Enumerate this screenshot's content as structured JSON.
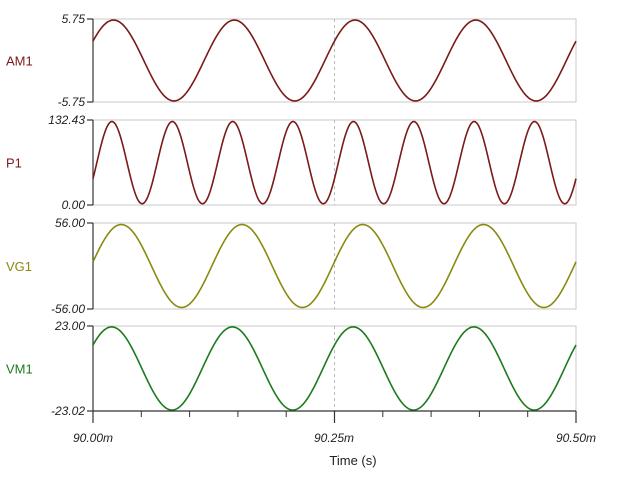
{
  "chart_data": {
    "type": "line",
    "x_ticks": [
      "90.00m",
      "90.25m",
      "90.50m"
    ],
    "x_range": [
      90.0,
      90.5
    ],
    "x_unit_note": "ms",
    "xlabel": "Time (s)",
    "panels": [
      {
        "name": "AM1",
        "color": "#7a1a1a",
        "y_top_label": "5.75",
        "y_bottom_label": "-5.75",
        "ylim": [
          -5.75,
          5.75
        ],
        "amplitude": 5.6,
        "offset": 0.0,
        "freq_cycles": 4.0,
        "phase": 0.5
      },
      {
        "name": "P1",
        "color": "#7a1a1a",
        "y_top_label": "132.43",
        "y_bottom_label": "0.00",
        "ylim": [
          0.0,
          132.43
        ],
        "amplitude": 64,
        "offset": 66,
        "freq_cycles": 8.0,
        "phase": -0.4
      },
      {
        "name": "VG1",
        "color": "#8a8a10",
        "y_top_label": "56.00",
        "y_bottom_label": "-56.00",
        "ylim": [
          -56.0,
          56.0
        ],
        "amplitude": 54,
        "offset": 0.0,
        "freq_cycles": 4.0,
        "phase": 0.1
      },
      {
        "name": "VM1",
        "color": "#1e7a1e",
        "y_top_label": "23.00",
        "y_bottom_label": "-23.02",
        "ylim": [
          -23.02,
          23.0
        ],
        "amplitude": 22.5,
        "offset": 0.0,
        "freq_cycles": 4.0,
        "phase": 0.6
      }
    ]
  }
}
